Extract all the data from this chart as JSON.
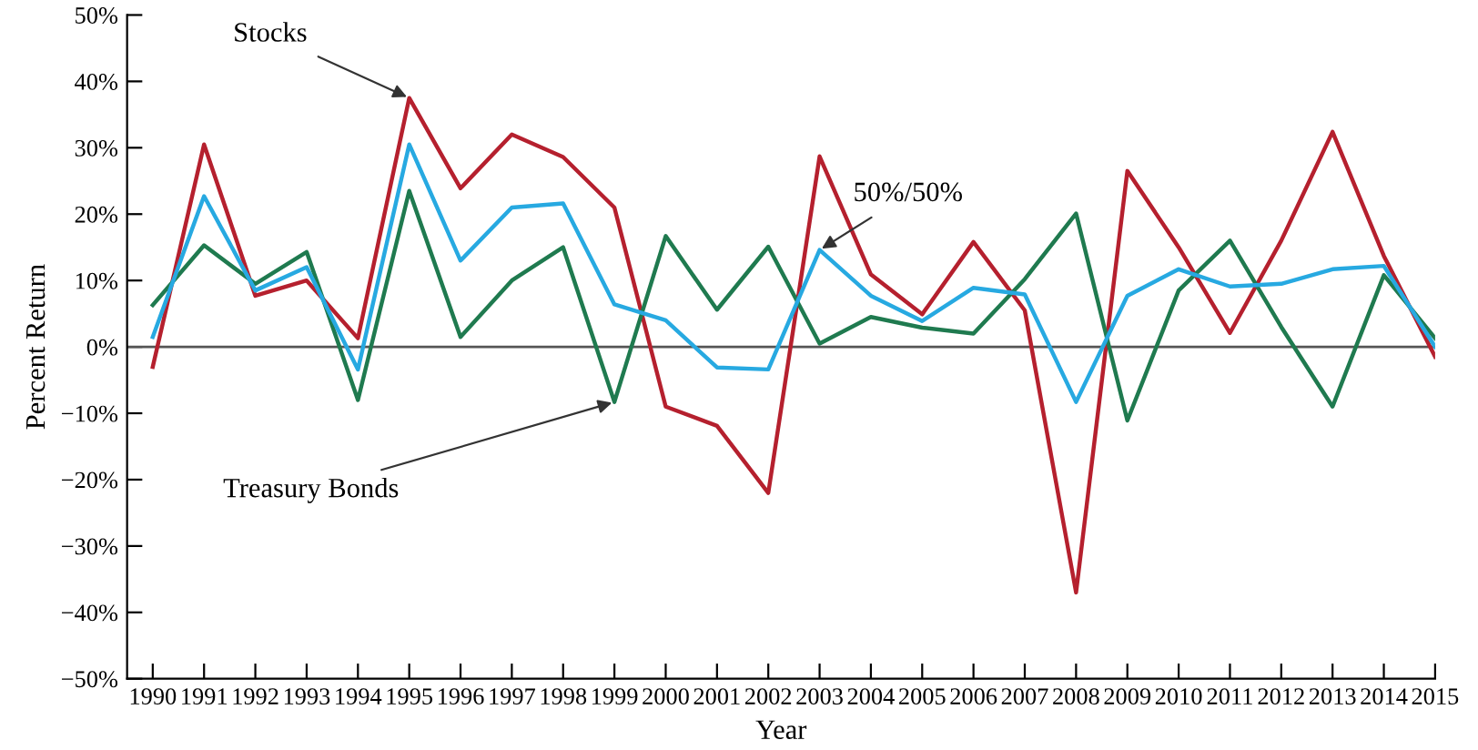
{
  "chart_data": {
    "type": "line",
    "xlabel": "Year",
    "ylabel": "Percent Return",
    "categories": [
      "1990",
      "1991",
      "1992",
      "1993",
      "1994",
      "1995",
      "1996",
      "1997",
      "1998",
      "1999",
      "2000",
      "2001",
      "2002",
      "2003",
      "2004",
      "2005",
      "2006",
      "2007",
      "2008",
      "2009",
      "2010",
      "2011",
      "2012",
      "2013",
      "2014",
      "2015"
    ],
    "series": [
      {
        "color": "#b5202e",
        "values": [
          -3,
          30.5,
          7.7,
          10,
          1.3,
          37.5,
          23.9,
          32,
          28.6,
          21,
          -9,
          -11.9,
          -22,
          28.7,
          10.9,
          4.9,
          15.8,
          5.5,
          -37,
          26.5,
          15,
          2.1,
          16,
          32.4,
          13.7,
          -1.5
        ]
      },
      {
        "color": "#1f7a4f",
        "values": [
          6.3,
          15.3,
          9.5,
          14.3,
          -8,
          23.5,
          1.5,
          10,
          15,
          -8.3,
          16.7,
          5.6,
          15.1,
          0.5,
          4.5,
          2.9,
          2,
          10.2,
          20.1,
          -11.1,
          8.5,
          16,
          3,
          -9,
          10.8,
          1.3
        ]
      },
      {
        "color": "#27a9e1",
        "values": [
          1.5,
          22.7,
          8.5,
          12,
          -3.4,
          30.5,
          13,
          21,
          21.6,
          6.4,
          4,
          -3.1,
          -3.4,
          14.6,
          7.7,
          3.9,
          8.9,
          7.9,
          -8.3,
          7.7,
          11.7,
          9.1,
          9.5,
          11.7,
          12.2,
          0
        ]
      }
    ],
    "ylim": [
      -50,
      50
    ],
    "yticks": [
      {
        "value": -50,
        "label": "−50%"
      },
      {
        "value": -40,
        "label": "−40%"
      },
      {
        "value": -30,
        "label": "−30%"
      },
      {
        "value": -20,
        "label": "−20%"
      },
      {
        "value": -10,
        "label": "−10%"
      },
      {
        "value": 0,
        "label": "0%"
      },
      {
        "value": 10,
        "label": "10%"
      },
      {
        "value": 20,
        "label": "20%"
      },
      {
        "value": 30,
        "label": "30%"
      },
      {
        "value": 40,
        "label": "40%"
      },
      {
        "value": 50,
        "label": "50%"
      }
    ],
    "ref_lines": [
      {
        "axis": "y",
        "value": 0,
        "color": "#555555"
      }
    ],
    "annotations": [
      {
        "text": "Stocks",
        "x": "1995",
        "y": 37.5
      },
      {
        "text": "Treasury Bonds",
        "x": "1999",
        "y": -8.3
      },
      {
        "text": "50%/50%",
        "x": "2003",
        "y": 14.6
      }
    ],
    "grid": false,
    "legend": false,
    "marker": "none",
    "line_style": "solid"
  }
}
